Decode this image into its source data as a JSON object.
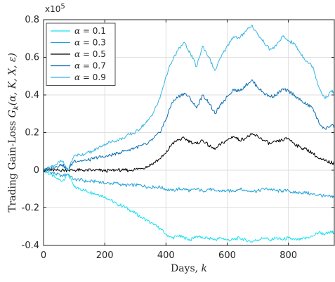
{
  "chart_data": {
    "type": "line",
    "title": "",
    "xlabel": "Days, k",
    "ylabel": "Trading Gain-Loss G_k(α, K, X, ε)",
    "y_scale_label": "x10",
    "y_scale_exponent": "5",
    "xlim": [
      0,
      950
    ],
    "ylim": [
      -0.4,
      0.8
    ],
    "x_ticks": [
      0,
      200,
      400,
      600,
      800
    ],
    "y_ticks": [
      -0.4,
      -0.2,
      0,
      0.2,
      0.4,
      0.6,
      0.8
    ],
    "x_tick_labels": [
      "0",
      "200",
      "400",
      "600",
      "800"
    ],
    "y_tick_labels": [
      "-0.4",
      "-0.2",
      "0",
      "0.2",
      "0.4",
      "0.6",
      "0.8"
    ],
    "grid": true,
    "legend_position": "top-left",
    "series": [
      {
        "name": "α = 0.1",
        "color": "#17e0ee",
        "x": [
          0,
          20,
          40,
          60,
          80,
          100,
          120,
          140,
          160,
          180,
          200,
          220,
          240,
          260,
          280,
          300,
          320,
          340,
          360,
          380,
          400,
          420,
          440,
          460,
          480,
          500,
          520,
          540,
          560,
          580,
          600,
          620,
          640,
          660,
          680,
          700,
          720,
          740,
          760,
          780,
          800,
          820,
          840,
          860,
          880,
          900,
          920,
          940,
          950
        ],
        "y": [
          0,
          -0.02,
          -0.04,
          -0.06,
          -0.02,
          -0.09,
          -0.1,
          -0.11,
          -0.12,
          -0.13,
          -0.14,
          -0.16,
          -0.18,
          -0.19,
          -0.21,
          -0.23,
          -0.25,
          -0.27,
          -0.29,
          -0.31,
          -0.34,
          -0.36,
          -0.35,
          -0.36,
          -0.37,
          -0.35,
          -0.36,
          -0.36,
          -0.37,
          -0.36,
          -0.37,
          -0.37,
          -0.36,
          -0.37,
          -0.38,
          -0.37,
          -0.36,
          -0.37,
          -0.36,
          -0.37,
          -0.36,
          -0.37,
          -0.37,
          -0.36,
          -0.35,
          -0.33,
          -0.34,
          -0.33,
          -0.33
        ]
      },
      {
        "name": "α = 0.3",
        "color": "#1fa2d6",
        "x": [
          0,
          20,
          40,
          60,
          80,
          100,
          120,
          140,
          160,
          180,
          200,
          220,
          240,
          260,
          280,
          300,
          320,
          340,
          360,
          380,
          400,
          420,
          440,
          460,
          480,
          500,
          520,
          540,
          560,
          580,
          600,
          620,
          640,
          660,
          680,
          700,
          720,
          740,
          760,
          780,
          800,
          820,
          840,
          860,
          880,
          900,
          920,
          940,
          950
        ],
        "y": [
          0,
          -0.01,
          -0.02,
          -0.03,
          -0.02,
          -0.05,
          -0.05,
          -0.06,
          -0.06,
          -0.06,
          -0.07,
          -0.07,
          -0.07,
          -0.08,
          -0.08,
          -0.08,
          -0.08,
          -0.09,
          -0.09,
          -0.09,
          -0.1,
          -0.11,
          -0.1,
          -0.1,
          -0.11,
          -0.1,
          -0.11,
          -0.1,
          -0.11,
          -0.11,
          -0.11,
          -0.11,
          -0.1,
          -0.11,
          -0.11,
          -0.11,
          -0.1,
          -0.1,
          -0.11,
          -0.11,
          -0.11,
          -0.12,
          -0.12,
          -0.12,
          -0.13,
          -0.13,
          -0.14,
          -0.14,
          -0.14
        ]
      },
      {
        "name": "α = 0.5",
        "color": "#000000",
        "x": [
          0,
          20,
          40,
          60,
          80,
          100,
          120,
          140,
          160,
          180,
          200,
          220,
          240,
          260,
          280,
          300,
          320,
          340,
          360,
          380,
          400,
          420,
          440,
          460,
          480,
          500,
          520,
          540,
          560,
          580,
          600,
          620,
          640,
          660,
          680,
          700,
          720,
          740,
          760,
          780,
          800,
          820,
          840,
          860,
          880,
          900,
          920,
          940,
          950
        ],
        "y": [
          0,
          0,
          0,
          0,
          0,
          0,
          0,
          0,
          0,
          0,
          -0.005,
          0,
          0,
          0,
          0,
          0.005,
          0.01,
          0.02,
          0.04,
          0.06,
          0.09,
          0.14,
          0.16,
          0.17,
          0.15,
          0.14,
          0.16,
          0.13,
          0.11,
          0.14,
          0.16,
          0.18,
          0.16,
          0.17,
          0.19,
          0.18,
          0.16,
          0.14,
          0.15,
          0.16,
          0.17,
          0.14,
          0.12,
          0.11,
          0.09,
          0.06,
          0.05,
          0.04,
          0.04
        ]
      },
      {
        "name": "α = 0.7",
        "color": "#0a6db0",
        "x": [
          0,
          20,
          40,
          60,
          80,
          100,
          120,
          140,
          160,
          180,
          200,
          220,
          240,
          260,
          280,
          300,
          320,
          340,
          360,
          380,
          400,
          420,
          440,
          460,
          480,
          500,
          520,
          540,
          560,
          580,
          600,
          620,
          640,
          660,
          680,
          700,
          720,
          740,
          760,
          780,
          800,
          820,
          840,
          860,
          880,
          900,
          920,
          940,
          950
        ],
        "y": [
          0,
          0.01,
          0.02,
          0.03,
          0.0,
          0.05,
          0.05,
          0.05,
          0.06,
          0.07,
          0.07,
          0.08,
          0.09,
          0.1,
          0.11,
          0.12,
          0.13,
          0.14,
          0.17,
          0.2,
          0.27,
          0.36,
          0.39,
          0.41,
          0.38,
          0.33,
          0.4,
          0.36,
          0.3,
          0.35,
          0.39,
          0.43,
          0.42,
          0.45,
          0.48,
          0.44,
          0.41,
          0.39,
          0.4,
          0.43,
          0.42,
          0.4,
          0.37,
          0.35,
          0.33,
          0.25,
          0.22,
          0.24,
          0.23
        ]
      },
      {
        "name": "α = 0.9",
        "color": "#35b5e5",
        "x": [
          0,
          20,
          40,
          60,
          80,
          100,
          120,
          140,
          160,
          180,
          200,
          220,
          240,
          260,
          280,
          300,
          320,
          340,
          360,
          380,
          400,
          420,
          440,
          460,
          480,
          500,
          520,
          540,
          560,
          580,
          600,
          620,
          640,
          660,
          680,
          700,
          720,
          740,
          760,
          780,
          800,
          820,
          840,
          860,
          880,
          900,
          920,
          940,
          950
        ],
        "y": [
          0,
          0.015,
          0.03,
          0.05,
          0.0,
          0.08,
          0.08,
          0.09,
          0.1,
          0.12,
          0.14,
          0.15,
          0.16,
          0.17,
          0.19,
          0.2,
          0.23,
          0.26,
          0.31,
          0.38,
          0.5,
          0.58,
          0.64,
          0.68,
          0.62,
          0.55,
          0.66,
          0.6,
          0.53,
          0.6,
          0.66,
          0.71,
          0.7,
          0.74,
          0.77,
          0.72,
          0.68,
          0.64,
          0.66,
          0.71,
          0.69,
          0.67,
          0.62,
          0.58,
          0.55,
          0.44,
          0.38,
          0.42,
          0.41
        ]
      }
    ]
  }
}
